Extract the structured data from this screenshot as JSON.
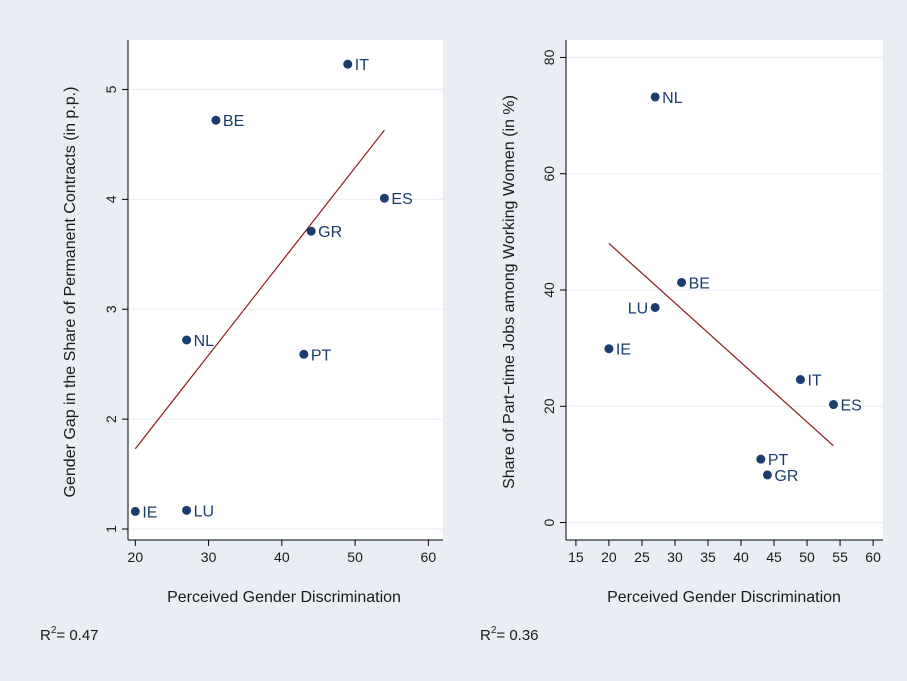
{
  "chart_data": [
    {
      "type": "scatter",
      "title": "",
      "xlabel": "Perceived Gender Discrimination",
      "ylabel": "Gender Gap in the Share of Permanent Contracts (in p.p.)",
      "xlim": [
        19,
        62
      ],
      "ylim": [
        0.9,
        5.45
      ],
      "xticks": [
        20,
        30,
        40,
        50,
        60
      ],
      "yticks": [
        1,
        2,
        3,
        4,
        5
      ],
      "points": [
        {
          "label": "IT",
          "x": 49,
          "y": 5.23,
          "label_side": "right"
        },
        {
          "label": "BE",
          "x": 31,
          "y": 4.72,
          "label_side": "right"
        },
        {
          "label": "ES",
          "x": 54,
          "y": 4.01,
          "label_side": "right"
        },
        {
          "label": "GR",
          "x": 44,
          "y": 3.71,
          "label_side": "right"
        },
        {
          "label": "NL",
          "x": 27,
          "y": 2.72,
          "label_side": "right"
        },
        {
          "label": "PT",
          "x": 43,
          "y": 2.59,
          "label_side": "right"
        },
        {
          "label": "IE",
          "x": 20,
          "y": 1.16,
          "label_side": "right"
        },
        {
          "label": "LU",
          "x": 27,
          "y": 1.17,
          "label_side": "right"
        }
      ],
      "fit_line": {
        "x": [
          20,
          54
        ],
        "y": [
          1.73,
          4.63
        ]
      },
      "r2_prefix": "R",
      "r2_exponent": "2",
      "r2_value": "= 0.47"
    },
    {
      "type": "scatter",
      "title": "",
      "xlabel": "Perceived Gender Discrimination",
      "ylabel": "Share of Part−time Jobs among Working Women (in %)",
      "xlim": [
        13.5,
        61.5
      ],
      "ylim": [
        -3,
        83
      ],
      "xticks": [
        15,
        20,
        25,
        30,
        35,
        40,
        45,
        50,
        55,
        60
      ],
      "yticks": [
        0,
        20,
        40,
        60,
        80
      ],
      "points": [
        {
          "label": "NL",
          "x": 27,
          "y": 73.2,
          "label_side": "right"
        },
        {
          "label": "BE",
          "x": 31,
          "y": 41.3,
          "label_side": "right"
        },
        {
          "label": "LU",
          "x": 27,
          "y": 37.0,
          "label_side": "left"
        },
        {
          "label": "IE",
          "x": 20,
          "y": 29.9,
          "label_side": "right"
        },
        {
          "label": "IT",
          "x": 49,
          "y": 24.6,
          "label_side": "right"
        },
        {
          "label": "ES",
          "x": 54,
          "y": 20.3,
          "label_side": "right"
        },
        {
          "label": "PT",
          "x": 43,
          "y": 10.9,
          "label_side": "right"
        },
        {
          "label": "GR",
          "x": 44,
          "y": 8.2,
          "label_side": "right"
        }
      ],
      "fit_line": {
        "x": [
          20,
          54
        ],
        "y": [
          48.0,
          13.2
        ]
      },
      "r2_prefix": "R",
      "r2_exponent": "2",
      "r2_value": "= 0.36"
    }
  ],
  "colors": {
    "outer_background": "#e8eef3",
    "plot_background": "#ffffff",
    "grid": "#e8eef3",
    "axis": "#000000",
    "point": "#1a3d6e",
    "fit_line": "#8b1a1a",
    "text": "#1a1a1a"
  }
}
